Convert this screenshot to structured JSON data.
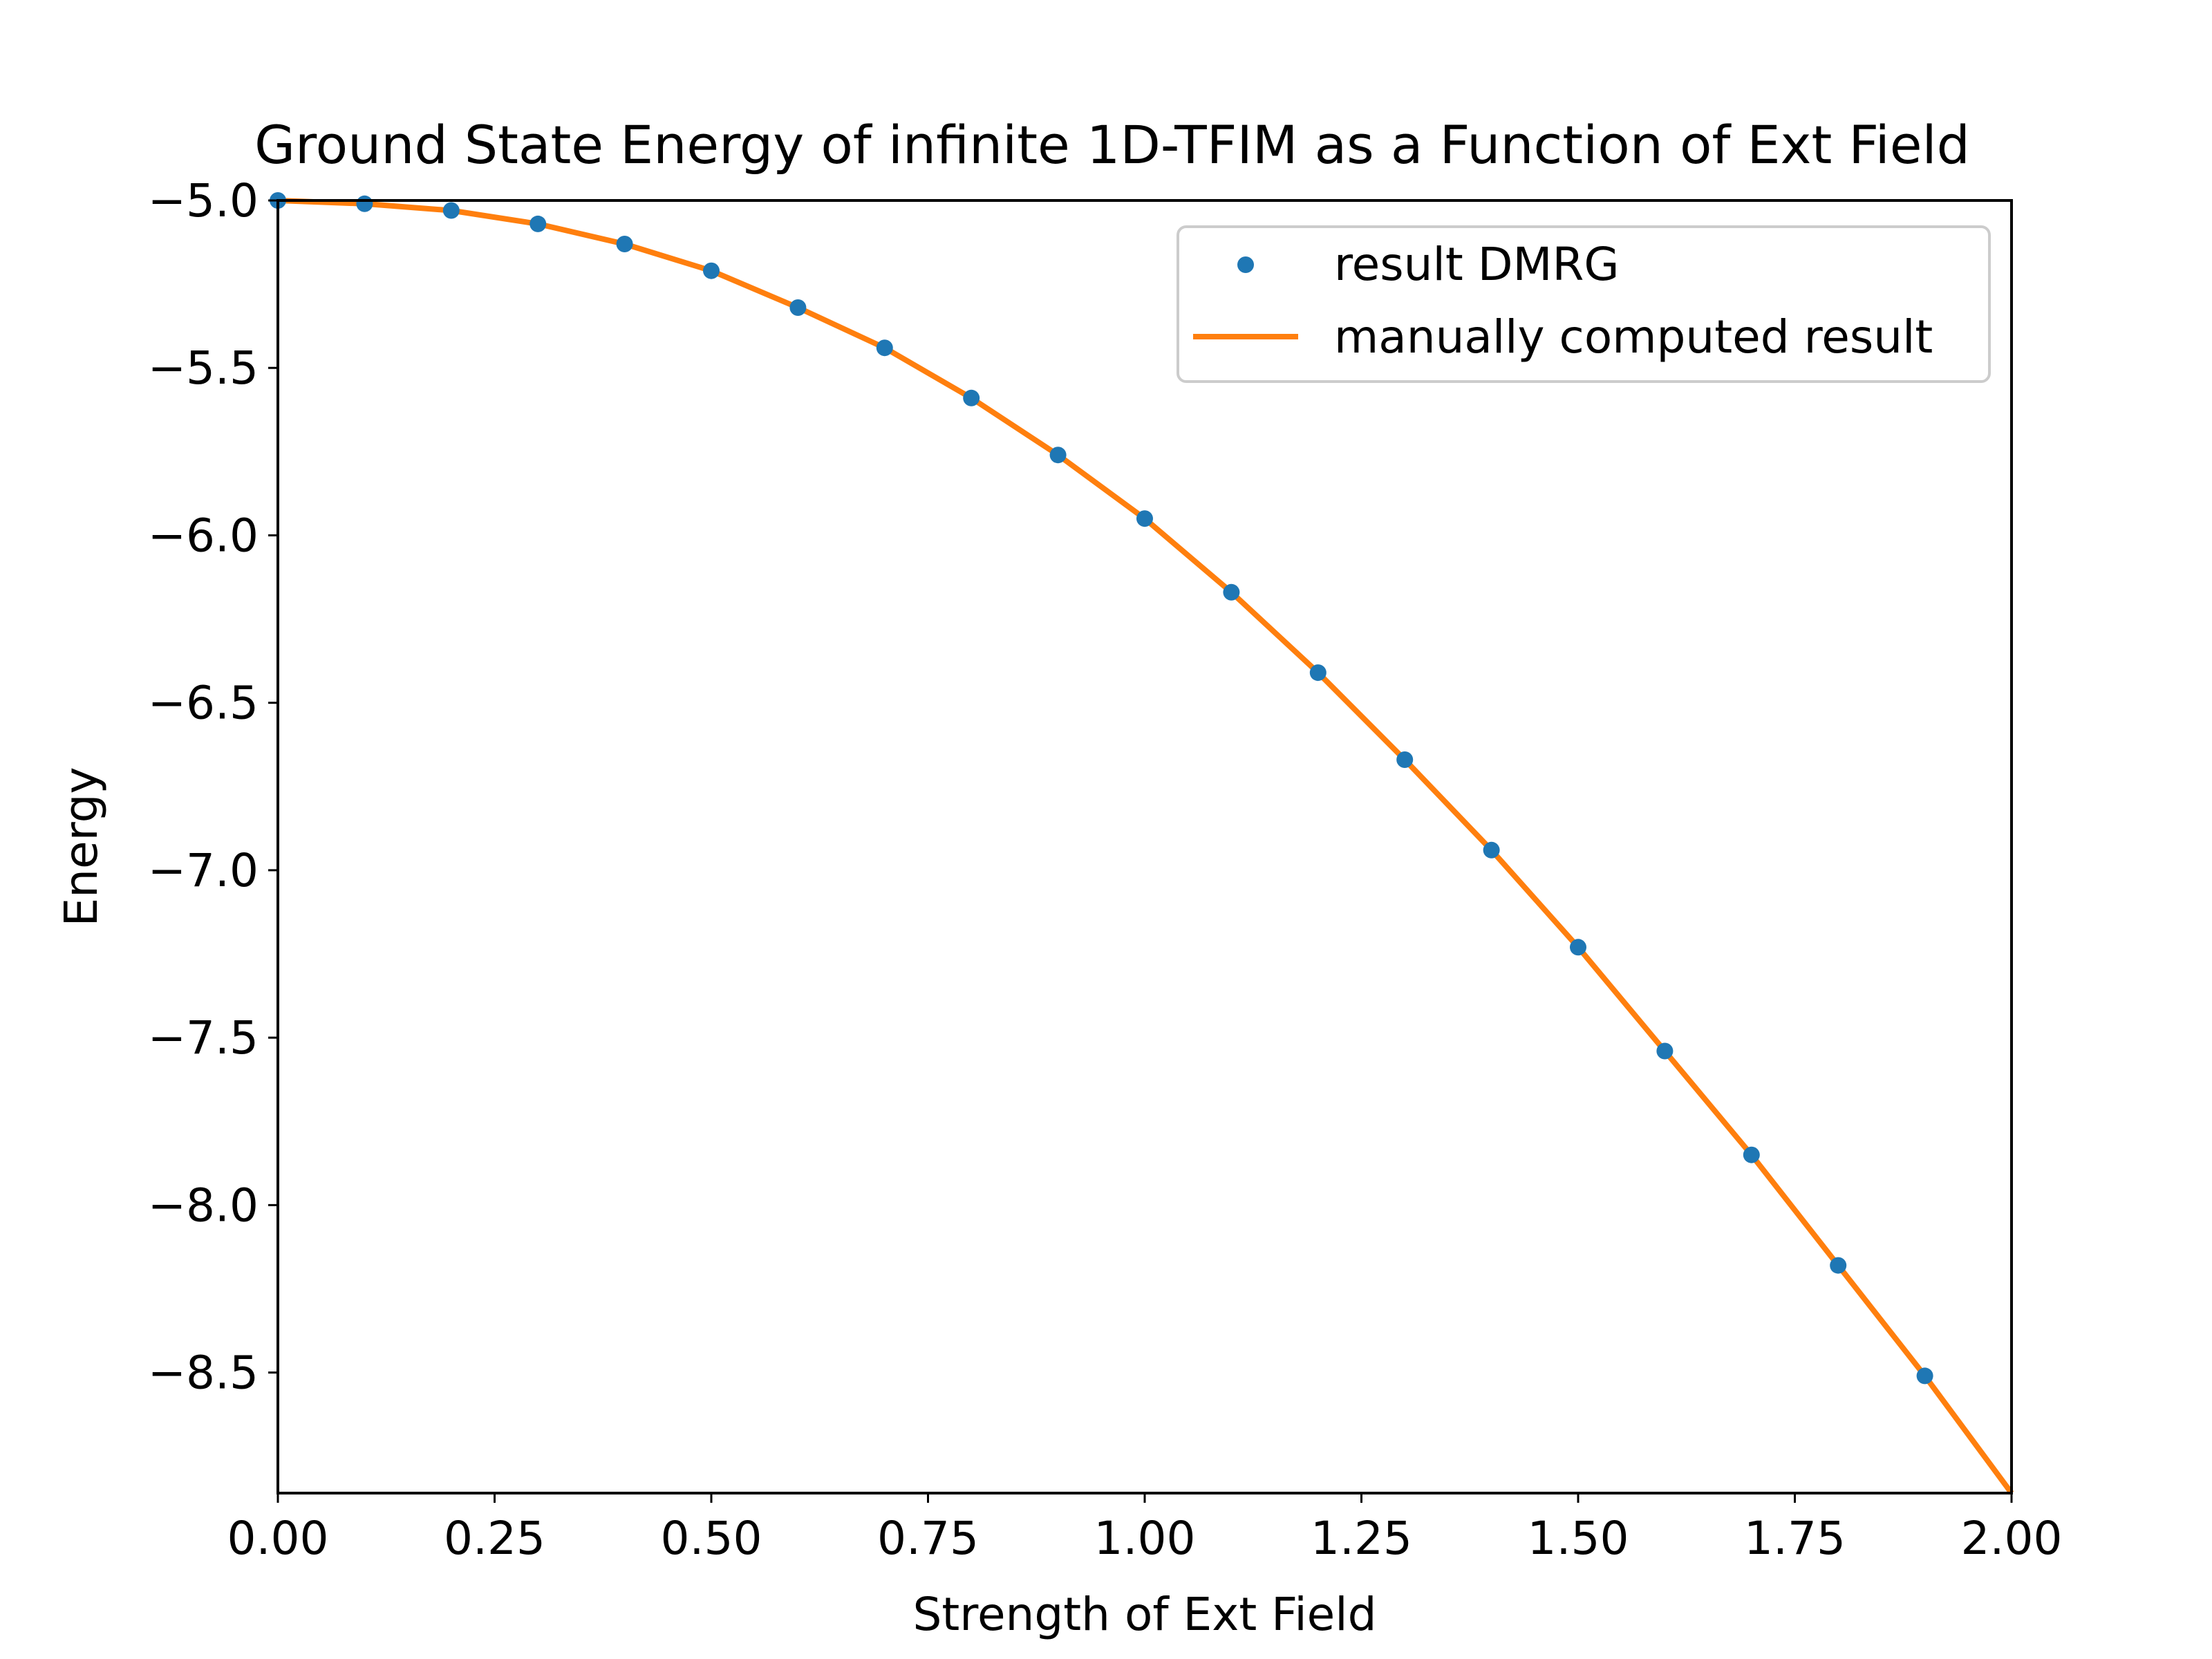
{
  "chart_data": {
    "type": "line",
    "title": "Ground State Energy of infinite 1D-TFIM as a Function of Ext Field",
    "xlabel": "Strength of Ext Field",
    "ylabel": "Energy",
    "xlim": [
      0,
      2
    ],
    "ylim": [
      -8.86,
      -5.0
    ],
    "x_ticks": [
      0,
      0.25,
      0.5,
      0.75,
      1.0,
      1.25,
      1.5,
      1.75,
      2.0
    ],
    "x_tick_labels": [
      "0.00",
      "0.25",
      "0.50",
      "0.75",
      "1.00",
      "1.25",
      "1.50",
      "1.75",
      "2.00"
    ],
    "y_ticks": [
      -5.0,
      -5.5,
      -6.0,
      -6.5,
      -7.0,
      -7.5,
      -8.0,
      -8.5
    ],
    "y_tick_labels": [
      "−5.0",
      "−5.5",
      "−6.0",
      "−6.5",
      "−7.0",
      "−7.5",
      "−8.0",
      "−8.5"
    ],
    "grid": false,
    "legend_position": "top-right",
    "series": [
      {
        "name": "result DMRG",
        "kind": "scatter",
        "color": "#1f77b4",
        "x": [
          0.0,
          0.1,
          0.2,
          0.3,
          0.4,
          0.5,
          0.6,
          0.7,
          0.8,
          0.9,
          1.0,
          1.1,
          1.2,
          1.3,
          1.4,
          1.5,
          1.6,
          1.7,
          1.8,
          1.9
        ],
        "y": [
          -5.0,
          -5.01,
          -5.03,
          -5.07,
          -5.13,
          -5.21,
          -5.32,
          -5.44,
          -5.59,
          -5.76,
          -5.95,
          -6.17,
          -6.41,
          -6.67,
          -6.94,
          -7.23,
          -7.54,
          -7.85,
          -8.18,
          -8.51
        ]
      },
      {
        "name": "manually computed result",
        "kind": "line",
        "color": "#ff7f0e",
        "x": [
          0.0,
          0.1,
          0.2,
          0.3,
          0.4,
          0.5,
          0.6,
          0.7,
          0.8,
          0.9,
          1.0,
          1.1,
          1.2,
          1.3,
          1.4,
          1.5,
          1.6,
          1.7,
          1.8,
          1.9,
          2.0
        ],
        "y": [
          -5.0,
          -5.01,
          -5.03,
          -5.07,
          -5.13,
          -5.21,
          -5.32,
          -5.44,
          -5.59,
          -5.76,
          -5.95,
          -6.17,
          -6.41,
          -6.67,
          -6.94,
          -7.23,
          -7.54,
          -7.85,
          -8.18,
          -8.51,
          -8.86
        ]
      }
    ]
  }
}
